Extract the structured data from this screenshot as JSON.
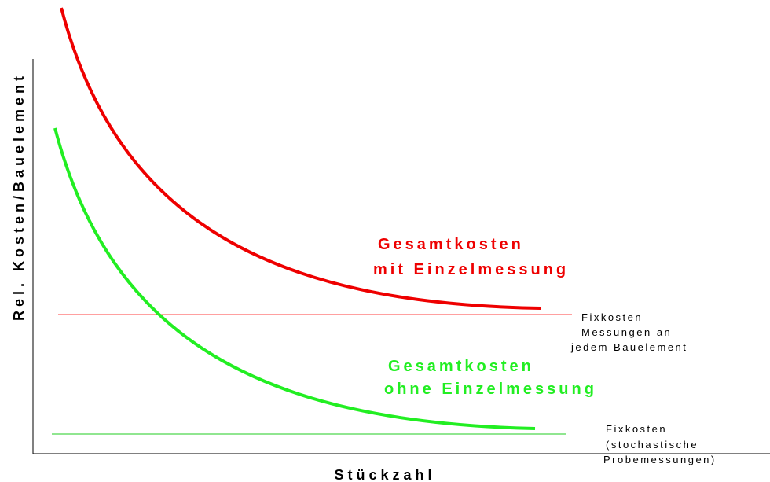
{
  "axes": {
    "y_label": "Rel. Kosten/Bauelement",
    "x_label": "Stückzahl"
  },
  "curves": [
    {
      "lines": [
        "Gesamtkosten",
        "mit Einzelmessung"
      ]
    },
    {
      "lines": [
        "Gesamtkosten",
        "ohne Einzelmessung"
      ]
    }
  ],
  "fixed_costs": [
    {
      "lines": [
        "Fixkosten",
        "Messungen an",
        "jedem Bauelement"
      ]
    },
    {
      "lines": [
        "Fixkosten",
        "(stochastische",
        "Probemessungen)"
      ]
    }
  ]
}
